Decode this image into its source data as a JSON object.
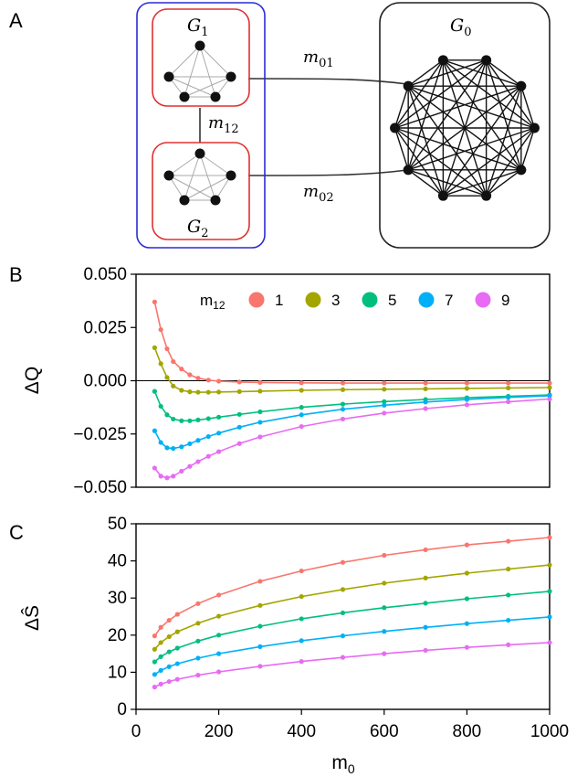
{
  "panel_labels": {
    "a": "A",
    "b": "B",
    "c": "C"
  },
  "diagram": {
    "g1_label": "G",
    "g1_sub": "1",
    "g2_label": "G",
    "g2_sub": "2",
    "g0_label": "G",
    "g0_sub": "0",
    "m01_label": "m",
    "m01_sub": "01",
    "m02_label": "m",
    "m02_sub": "02",
    "m12_label": "m",
    "m12_sub": "12",
    "colors": {
      "outer_group": "#2b2bd6",
      "subgroup": "#e03030",
      "g0_box": "#222222",
      "node": "#111111",
      "inner_edge": "#aaaaaa"
    }
  },
  "chart_data": [
    {
      "panel": "B",
      "type": "line",
      "ylabel": "ΔQ",
      "xlabel": "",
      "xlim": [
        0,
        1000
      ],
      "ylim": [
        -0.05,
        0.05
      ],
      "yticks": [
        "0.050",
        "0.025",
        "0.000",
        "−0.025",
        "−0.050"
      ],
      "ytick_values": [
        0.05,
        0.025,
        0.0,
        -0.025,
        -0.05
      ],
      "hline_at": 0,
      "legend": {
        "title": "m",
        "title_sub": "12",
        "position": "top"
      },
      "series": [
        {
          "name": "1",
          "color": "#f8766d",
          "x": [
            45,
            60,
            75,
            90,
            110,
            130,
            150,
            175,
            200,
            250,
            300,
            400,
            500,
            600,
            700,
            800,
            900,
            1000
          ],
          "y": [
            0.037,
            0.024,
            0.015,
            0.009,
            0.0055,
            0.0028,
            0.0012,
            0.0003,
            -0.0002,
            -0.0006,
            -0.0008,
            -0.001,
            -0.0011,
            -0.0011,
            -0.0011,
            -0.0011,
            -0.0011,
            -0.0011
          ]
        },
        {
          "name": "3",
          "color": "#a3a500",
          "x": [
            45,
            60,
            75,
            90,
            110,
            130,
            150,
            175,
            200,
            250,
            300,
            400,
            500,
            600,
            700,
            800,
            900,
            1000
          ],
          "y": [
            0.0155,
            0.008,
            0.0015,
            -0.0025,
            -0.0045,
            -0.0052,
            -0.0054,
            -0.0054,
            -0.0053,
            -0.0051,
            -0.0049,
            -0.0045,
            -0.0042,
            -0.004,
            -0.0038,
            -0.0036,
            -0.0034,
            -0.0032
          ]
        },
        {
          "name": "5",
          "color": "#00bf7d",
          "x": [
            45,
            60,
            75,
            90,
            110,
            130,
            150,
            175,
            200,
            250,
            300,
            400,
            500,
            600,
            700,
            800,
            900,
            1000
          ],
          "y": [
            -0.005,
            -0.012,
            -0.016,
            -0.018,
            -0.0188,
            -0.0188,
            -0.0184,
            -0.0178,
            -0.0171,
            -0.0158,
            -0.0146,
            -0.0125,
            -0.011,
            -0.0098,
            -0.0088,
            -0.008,
            -0.0073,
            -0.0067
          ]
        },
        {
          "name": "7",
          "color": "#00b0f6",
          "x": [
            45,
            60,
            75,
            90,
            110,
            130,
            150,
            175,
            200,
            250,
            300,
            400,
            500,
            600,
            700,
            800,
            900,
            1000
          ],
          "y": [
            -0.0235,
            -0.029,
            -0.0315,
            -0.0318,
            -0.031,
            -0.0296,
            -0.028,
            -0.0262,
            -0.0246,
            -0.0218,
            -0.0195,
            -0.016,
            -0.0134,
            -0.0115,
            -0.01,
            -0.0088,
            -0.0078,
            -0.0071
          ]
        },
        {
          "name": "9",
          "color": "#e76bf3",
          "x": [
            45,
            60,
            75,
            90,
            110,
            130,
            150,
            175,
            200,
            250,
            300,
            400,
            500,
            600,
            700,
            800,
            900,
            1000
          ],
          "y": [
            -0.041,
            -0.0448,
            -0.0456,
            -0.0448,
            -0.0425,
            -0.0402,
            -0.038,
            -0.0355,
            -0.0333,
            -0.0295,
            -0.0264,
            -0.0215,
            -0.018,
            -0.0152,
            -0.0131,
            -0.0113,
            -0.0099,
            -0.0086
          ]
        }
      ]
    },
    {
      "panel": "C",
      "type": "line",
      "ylabel": "ΔŜ",
      "xlabel": "m",
      "xlabel_sub": "0",
      "xlim": [
        0,
        1000
      ],
      "ylim": [
        0,
        50
      ],
      "xticks": [
        0,
        200,
        400,
        600,
        800,
        1000
      ],
      "yticks": [
        0,
        10,
        20,
        30,
        40,
        50
      ],
      "series": [
        {
          "name": "1",
          "color": "#f8766d",
          "x": [
            45,
            60,
            80,
            100,
            150,
            200,
            300,
            400,
            500,
            600,
            700,
            800,
            900,
            1000
          ],
          "y": [
            19.8,
            22.1,
            24.0,
            25.6,
            28.5,
            30.8,
            34.5,
            37.3,
            39.6,
            41.5,
            43.0,
            44.3,
            45.3,
            46.3
          ]
        },
        {
          "name": "3",
          "color": "#a3a500",
          "x": [
            45,
            60,
            80,
            100,
            150,
            200,
            300,
            400,
            500,
            600,
            700,
            800,
            900,
            1000
          ],
          "y": [
            16.2,
            18.0,
            19.6,
            20.9,
            23.2,
            25.1,
            28.0,
            30.4,
            32.3,
            34.0,
            35.4,
            36.7,
            37.8,
            38.9
          ]
        },
        {
          "name": "5",
          "color": "#00bf7d",
          "x": [
            45,
            60,
            80,
            100,
            150,
            200,
            300,
            400,
            500,
            600,
            700,
            800,
            900,
            1000
          ],
          "y": [
            12.8,
            14.2,
            15.5,
            16.5,
            18.4,
            20.0,
            22.4,
            24.4,
            26.0,
            27.4,
            28.6,
            29.8,
            30.8,
            31.8
          ]
        },
        {
          "name": "7",
          "color": "#00b0f6",
          "x": [
            45,
            60,
            80,
            100,
            150,
            200,
            300,
            400,
            500,
            600,
            700,
            800,
            900,
            1000
          ],
          "y": [
            9.4,
            10.5,
            11.5,
            12.3,
            13.8,
            15.0,
            16.9,
            18.5,
            19.8,
            21.0,
            22.1,
            23.1,
            24.0,
            24.9
          ]
        },
        {
          "name": "9",
          "color": "#e76bf3",
          "x": [
            45,
            60,
            80,
            100,
            150,
            200,
            300,
            400,
            500,
            600,
            700,
            800,
            900,
            1000
          ],
          "y": [
            6.0,
            6.8,
            7.5,
            8.1,
            9.2,
            10.1,
            11.6,
            12.9,
            14.0,
            15.0,
            15.9,
            16.7,
            17.4,
            18.0
          ]
        }
      ]
    }
  ]
}
